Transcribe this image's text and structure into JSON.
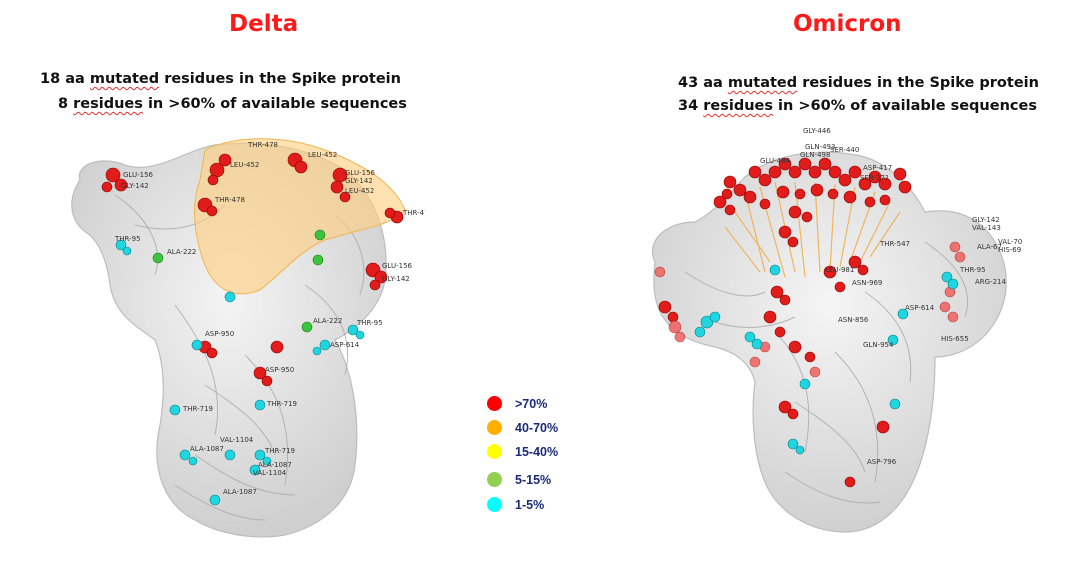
{
  "delta": {
    "title": "Delta",
    "line1": {
      "num": "18 aa ",
      "u": "mutated",
      "rest": " residues in the Spike protein"
    },
    "line2": {
      "num": "8 ",
      "u": "residues",
      "rest": " in >60% of available sequences"
    },
    "residue_labels": [
      "GLU-156",
      "GLY-142",
      "THR-478",
      "LEU-452",
      "LEU-452",
      "GLU-156",
      "GLY-142",
      "LEU-452",
      "THR-478",
      "THR-478",
      "THR-95",
      "ALA-222",
      "GLU-156",
      "GLY-142",
      "ASP-950",
      "ALA-222",
      "THR-95",
      "ASP-614",
      "ASP-950",
      "THR-719",
      "THR-719",
      "VAL-1104",
      "ALA-1087",
      "THR-719",
      "ALA-1087",
      "VAL-1104",
      "ALA-1087"
    ]
  },
  "omicron": {
    "title": "Omicron",
    "line1": {
      "num": "43 aa ",
      "u": "mutated",
      "rest": " residues in the Spike protein"
    },
    "line2": {
      "num": "34 ",
      "u": "residues",
      "rest": " in >60% of available sequences"
    },
    "residue_labels": [
      "GLY-446",
      "GLN-493",
      "SER-440",
      "GLN-498",
      "GLU-484",
      "ASP-417",
      "SER-371",
      "GLY-142",
      "VAL-143",
      "VAL-70",
      "ALA-67",
      "HIS-69",
      "THR-547",
      "THR-95",
      "LEU-981",
      "ARG-214",
      "ASN-969",
      "ASP-614",
      "ASN-856",
      "GLN-954",
      "HIS-655",
      "ASP-796"
    ]
  },
  "legend": [
    {
      "label": ">70%",
      "color": "#ff0000"
    },
    {
      "label": "40-70%",
      "color": "#ffb000"
    },
    {
      "label": "15-40%",
      "color": "#ffff00"
    },
    {
      "label": "5-15%",
      "color": "#92d050"
    },
    {
      "label": "1-5%",
      "color": "#00ffff"
    }
  ]
}
